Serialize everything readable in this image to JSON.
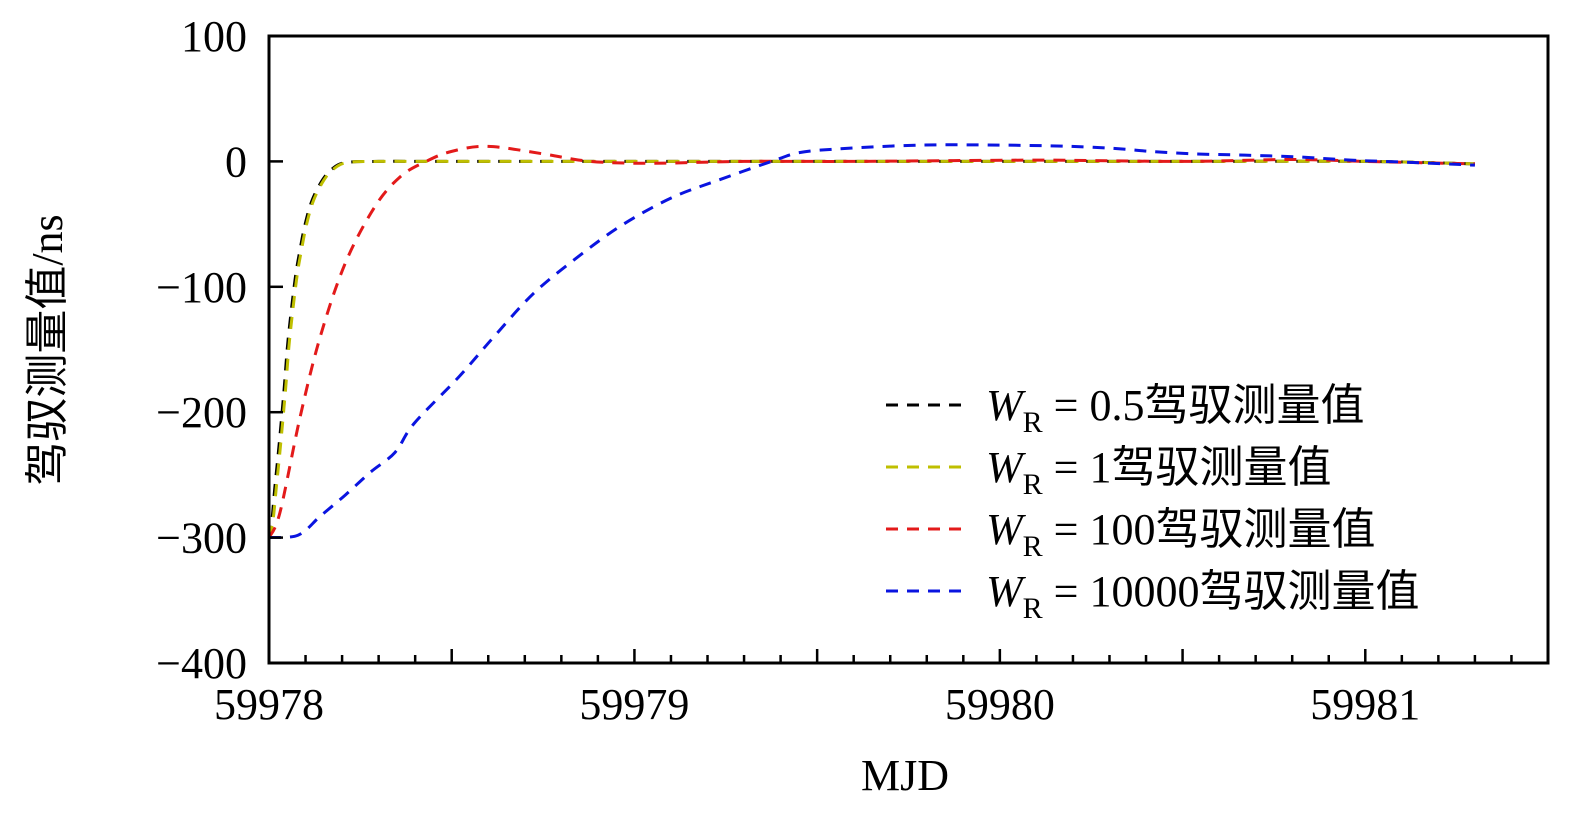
{
  "chart_data": {
    "type": "line",
    "title": "",
    "xlabel": "MJD",
    "ylabel": "驾驭测量值/ns",
    "xlim": [
      59978,
      59981.5
    ],
    "ylim": [
      -400,
      100
    ],
    "grid": false,
    "legend_position": "bottom-right",
    "x_ticks_major": [
      59978,
      59978.5,
      59979,
      59979.5,
      59980,
      59980.5,
      59981
    ],
    "x_tick_labels": [
      "59978",
      "59979",
      "59980",
      "59981"
    ],
    "x_tick_label_values": [
      59978,
      59979,
      59980,
      59981
    ],
    "x_minor_step": 0.1,
    "y_ticks": [
      100,
      0,
      -100,
      -200,
      -300,
      -400
    ],
    "y_tick_labels": [
      "100",
      "0",
      "−100",
      "−200",
      "−300",
      "−400"
    ],
    "series": [
      {
        "name": "W_R = 0.5驾驭测量值",
        "legend_label": {
          "w": "W",
          "sub": "R",
          "rest": " = 0.5驾驭测量值"
        },
        "color": "#000000",
        "style": "dashed",
        "x": [
          59978.0,
          59978.008,
          59978.016,
          59978.027,
          59978.041,
          59978.052,
          59978.071,
          59978.084,
          59978.099,
          59978.118,
          59978.146,
          59978.173,
          59978.209,
          59978.3,
          59978.5,
          59979.0,
          59979.5,
          59980.0,
          59980.5,
          59981.0,
          59981.3
        ],
        "y": [
          -300,
          -286,
          -260,
          -228,
          -183,
          -143,
          -95,
          -72,
          -50,
          -31,
          -15,
          -6,
          -1,
          0,
          0,
          0,
          0,
          0,
          0,
          0,
          -2
        ]
      },
      {
        "name": "W_R = 1驾驭测量值",
        "legend_label": {
          "w": "W",
          "sub": "R",
          "rest": " = 1驾驭测量值"
        },
        "color": "#bfbf00",
        "style": "dashed",
        "x": [
          59978.0,
          59978.011,
          59978.02,
          59978.031,
          59978.045,
          59978.056,
          59978.075,
          59978.088,
          59978.103,
          59978.122,
          59978.15,
          59978.177,
          59978.213,
          59978.3,
          59978.5,
          59979.0,
          59979.5,
          59980.0,
          59980.5,
          59981.0,
          59981.3
        ],
        "y": [
          -300,
          -286,
          -260,
          -228,
          -183,
          -143,
          -95,
          -72,
          -50,
          -31,
          -15,
          -6,
          -1,
          0,
          0,
          0,
          0,
          0,
          0,
          0,
          -2
        ]
      },
      {
        "name": "W_R = 100驾驭测量值",
        "legend_label": {
          "w": "W",
          "sub": "R",
          "rest": " = 100驾驭测量值"
        },
        "color": "#e31a1a",
        "style": "dashed",
        "x": [
          59978.0,
          59978.03,
          59978.085,
          59978.14,
          59978.209,
          59978.29,
          59978.36,
          59978.43,
          59978.5,
          59978.6,
          59978.75,
          59978.88,
          59979.05,
          59979.3,
          59979.6,
          59980.1,
          59980.5,
          59980.8,
          59981.0,
          59981.3
        ],
        "y": [
          -300,
          -280,
          -204,
          -140,
          -81,
          -36,
          -12,
          0,
          8,
          12,
          6,
          0,
          -1.5,
          0,
          0,
          1,
          0,
          1.5,
          0,
          -2
        ]
      },
      {
        "name": "W_R = 10000驾驭测量值",
        "legend_label": {
          "w": "W",
          "sub": "R",
          "rest": " = 10000驾驭测量值"
        },
        "color": "#0a14e0",
        "style": "dashed",
        "x": [
          59978.0,
          59978.08,
          59978.14,
          59978.209,
          59978.277,
          59978.345,
          59978.397,
          59978.519,
          59978.615,
          59978.725,
          59978.846,
          59978.965,
          59979.102,
          59979.239,
          59979.385,
          59979.451,
          59979.56,
          59979.78,
          59980.0,
          59980.19,
          59980.33,
          59980.41,
          59980.53,
          59980.67,
          59980.82,
          59980.96,
          59981.1,
          59981.3
        ],
        "y": [
          -300,
          -298,
          -283,
          -266,
          -248,
          -232,
          -209,
          -172,
          -140,
          -105,
          -76,
          -51,
          -29,
          -14,
          1,
          7,
          10,
          13,
          13,
          12,
          10,
          8,
          6,
          5,
          3.5,
          1,
          -0.5,
          -3
        ]
      }
    ]
  }
}
